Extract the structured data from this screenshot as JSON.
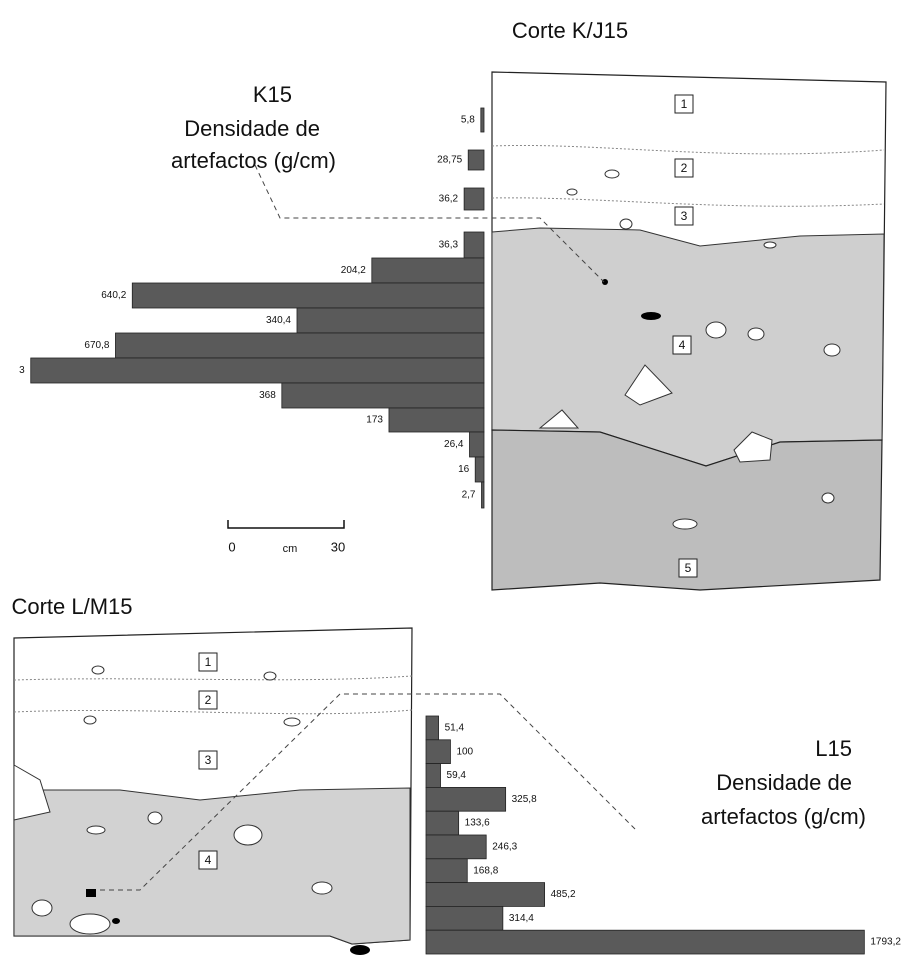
{
  "chart_data": [
    {
      "type": "bar",
      "orientation": "horizontal",
      "title": "K15",
      "subtitle": [
        "Densidade de",
        "artefactos (g/cm)"
      ],
      "values": [
        5.8,
        28.75,
        36.2,
        36.3,
        204.2,
        640.2,
        340.4,
        670.8,
        825,
        368,
        173,
        26.4,
        16,
        2.7
      ],
      "value_labels": [
        "5,8",
        "28,75",
        "36,2",
        "36,3",
        "204,2",
        "640,2",
        "340,4",
        "670,8",
        null,
        "368",
        "173",
        "26,4",
        "16",
        "2,7"
      ],
      "truncated_value_label": "3",
      "xlim": [
        0,
        830
      ],
      "direction": "left",
      "color": "#5a5a5a"
    },
    {
      "type": "bar",
      "orientation": "horizontal",
      "title": "L15",
      "subtitle": [
        "Densidade de",
        "artefactos (g/cm)"
      ],
      "values": [
        51.4,
        100,
        59.4,
        325.8,
        133.6,
        246.3,
        168.8,
        485.2,
        314.4,
        1793.2
      ],
      "value_labels": [
        "51,4",
        "100",
        "59,4",
        "325,8",
        "133,6",
        "246,3",
        "168,8",
        "485,2",
        "314,4",
        "1793,2"
      ],
      "xlim": [
        0,
        1800
      ],
      "direction": "right",
      "color": "#5a5a5a"
    }
  ],
  "profiles": [
    {
      "title": "Corte K/J15",
      "layers": [
        "1",
        "2",
        "3",
        "4",
        "5"
      ]
    },
    {
      "title": "Corte L/M15",
      "layers": [
        "1",
        "2",
        "3",
        "4"
      ]
    }
  ],
  "scale_bar": {
    "labels": [
      "0",
      "cm",
      "30"
    ]
  }
}
